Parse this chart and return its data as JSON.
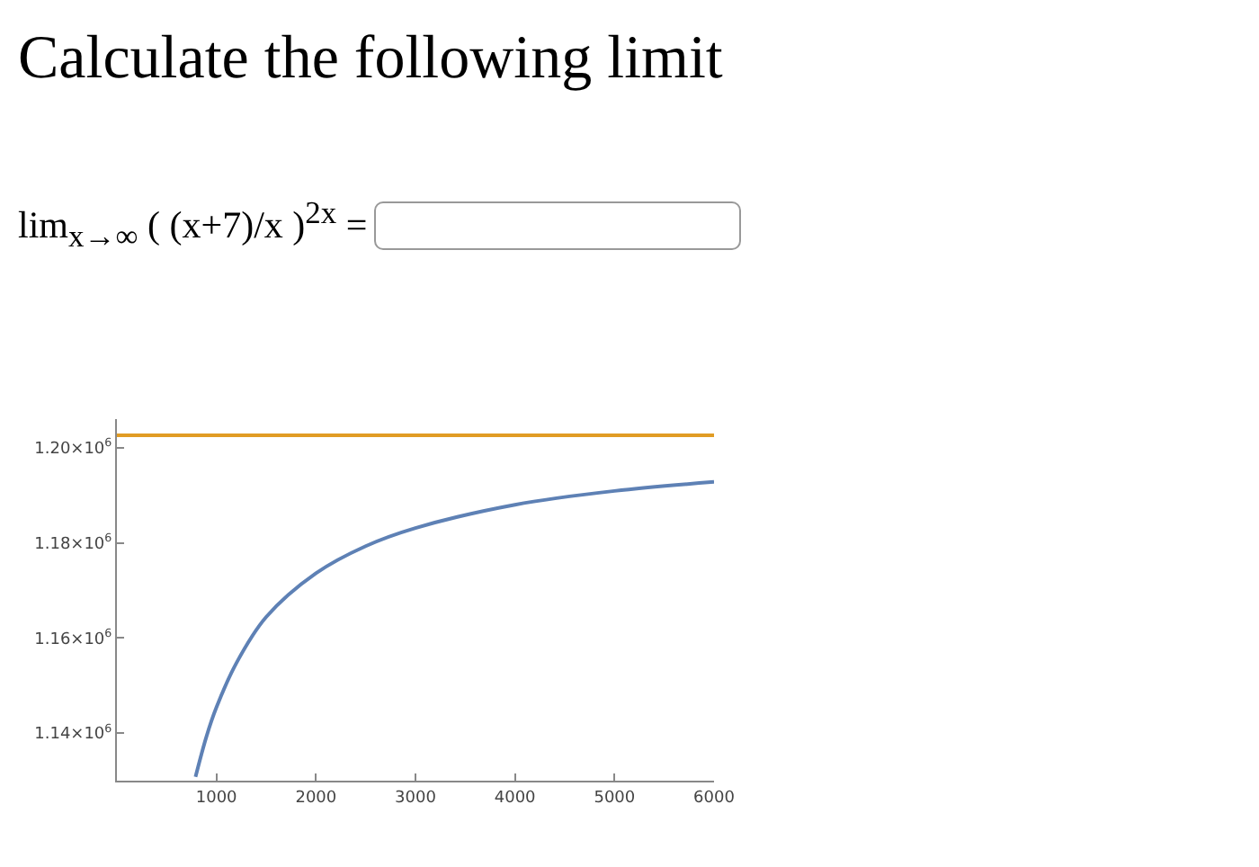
{
  "chart_data": {
    "type": "line",
    "title": "Calculate the following limit",
    "annotations": [
      "lim$_{x→∞}$ ( (x+7)/x )$^{2x}$ ="
    ],
    "x": [
      790,
      900,
      1000,
      1200,
      1500,
      2000,
      2500,
      3000,
      4000,
      5000,
      6000
    ],
    "series": [
      {
        "color": "#5e81b5",
        "values": [
          1130800,
          1139300,
          1145400,
          1154700,
          1164400,
          1173600,
          1179300,
          1183100,
          1188000,
          1190900,
          1192800
        ]
      }
    ],
    "ref_lines": [
      {
        "axis": "y",
        "value": 1202600,
        "color": "#e19c24"
      }
    ],
    "xlim": [
      0,
      6000
    ],
    "ylim": [
      1130000,
      1206000
    ],
    "xticks": [
      1000,
      2000,
      3000,
      4000,
      5000,
      6000
    ],
    "yticks": [
      {
        "value": 1140000,
        "label": "1.14×10$^{6}$"
      },
      {
        "value": 1160000,
        "label": "1.16×10$^{6}$"
      },
      {
        "value": 1180000,
        "label": "1.18×10$^{6}$"
      },
      {
        "value": 1200000,
        "label": "1.20×10$^{6}$"
      }
    ],
    "grid": false
  }
}
